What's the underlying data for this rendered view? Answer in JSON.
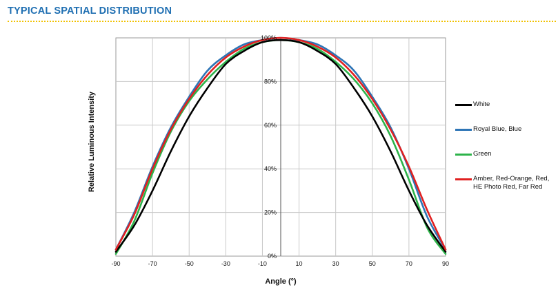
{
  "page": {
    "section_title": "TYPICAL SPATIAL DISTRIBUTION"
  },
  "colors": {
    "title": "#1f6fb2",
    "rule": "#f2c200"
  },
  "chart_data": {
    "type": "line",
    "xlabel": "Angle (°)",
    "ylabel": "Relative Luminous Intensity",
    "xlim": [
      -90,
      90
    ],
    "ylim": [
      0,
      100
    ],
    "x_ticks": [
      "-90",
      "-70",
      "-50",
      "-30",
      "-10",
      "10",
      "30",
      "50",
      "70",
      "90"
    ],
    "y_ticks": [
      "0%",
      "20%",
      "40%",
      "60%",
      "80%",
      "100%"
    ],
    "grid": true,
    "legend_position": "right",
    "series": [
      {
        "name": "White",
        "color": "#000000",
        "x": [
          -90,
          -80,
          -70,
          -60,
          -50,
          -40,
          -30,
          -20,
          -10,
          0,
          10,
          20,
          30,
          40,
          50,
          60,
          70,
          80,
          90
        ],
        "y": [
          2,
          14,
          30,
          48,
          64,
          77,
          88,
          94,
          98,
          99,
          98,
          94,
          88,
          77,
          64,
          48,
          30,
          14,
          2
        ]
      },
      {
        "name": "Royal Blue, Blue",
        "color": "#2e75b6",
        "x": [
          -90,
          -80,
          -70,
          -60,
          -50,
          -40,
          -30,
          -20,
          -10,
          0,
          10,
          20,
          30,
          40,
          50,
          60,
          70,
          80,
          90
        ],
        "y": [
          3,
          20,
          41,
          59,
          73,
          85,
          92,
          97,
          99,
          100,
          99,
          97,
          92,
          85,
          73,
          59,
          40,
          18,
          3
        ]
      },
      {
        "name": "Green",
        "color": "#2db34a",
        "x": [
          -90,
          -80,
          -70,
          -60,
          -50,
          -40,
          -30,
          -20,
          -10,
          0,
          10,
          20,
          30,
          40,
          50,
          60,
          70,
          80,
          90
        ],
        "y": [
          1,
          16,
          38,
          57,
          71,
          81,
          89,
          95,
          98,
          99,
          98,
          95,
          89,
          81,
          70,
          55,
          35,
          13,
          1
        ]
      },
      {
        "name": "Amber, Red-Orange, Red, HE Photo Red, Far Red",
        "color": "#e02020",
        "x": [
          -90,
          -80,
          -70,
          -60,
          -50,
          -40,
          -30,
          -20,
          -10,
          0,
          10,
          20,
          30,
          40,
          50,
          60,
          70,
          80,
          90
        ],
        "y": [
          3,
          19,
          40,
          58,
          72,
          83,
          91,
          96,
          99,
          100,
          99,
          96,
          91,
          83,
          72,
          58,
          41,
          21,
          3
        ]
      }
    ]
  }
}
